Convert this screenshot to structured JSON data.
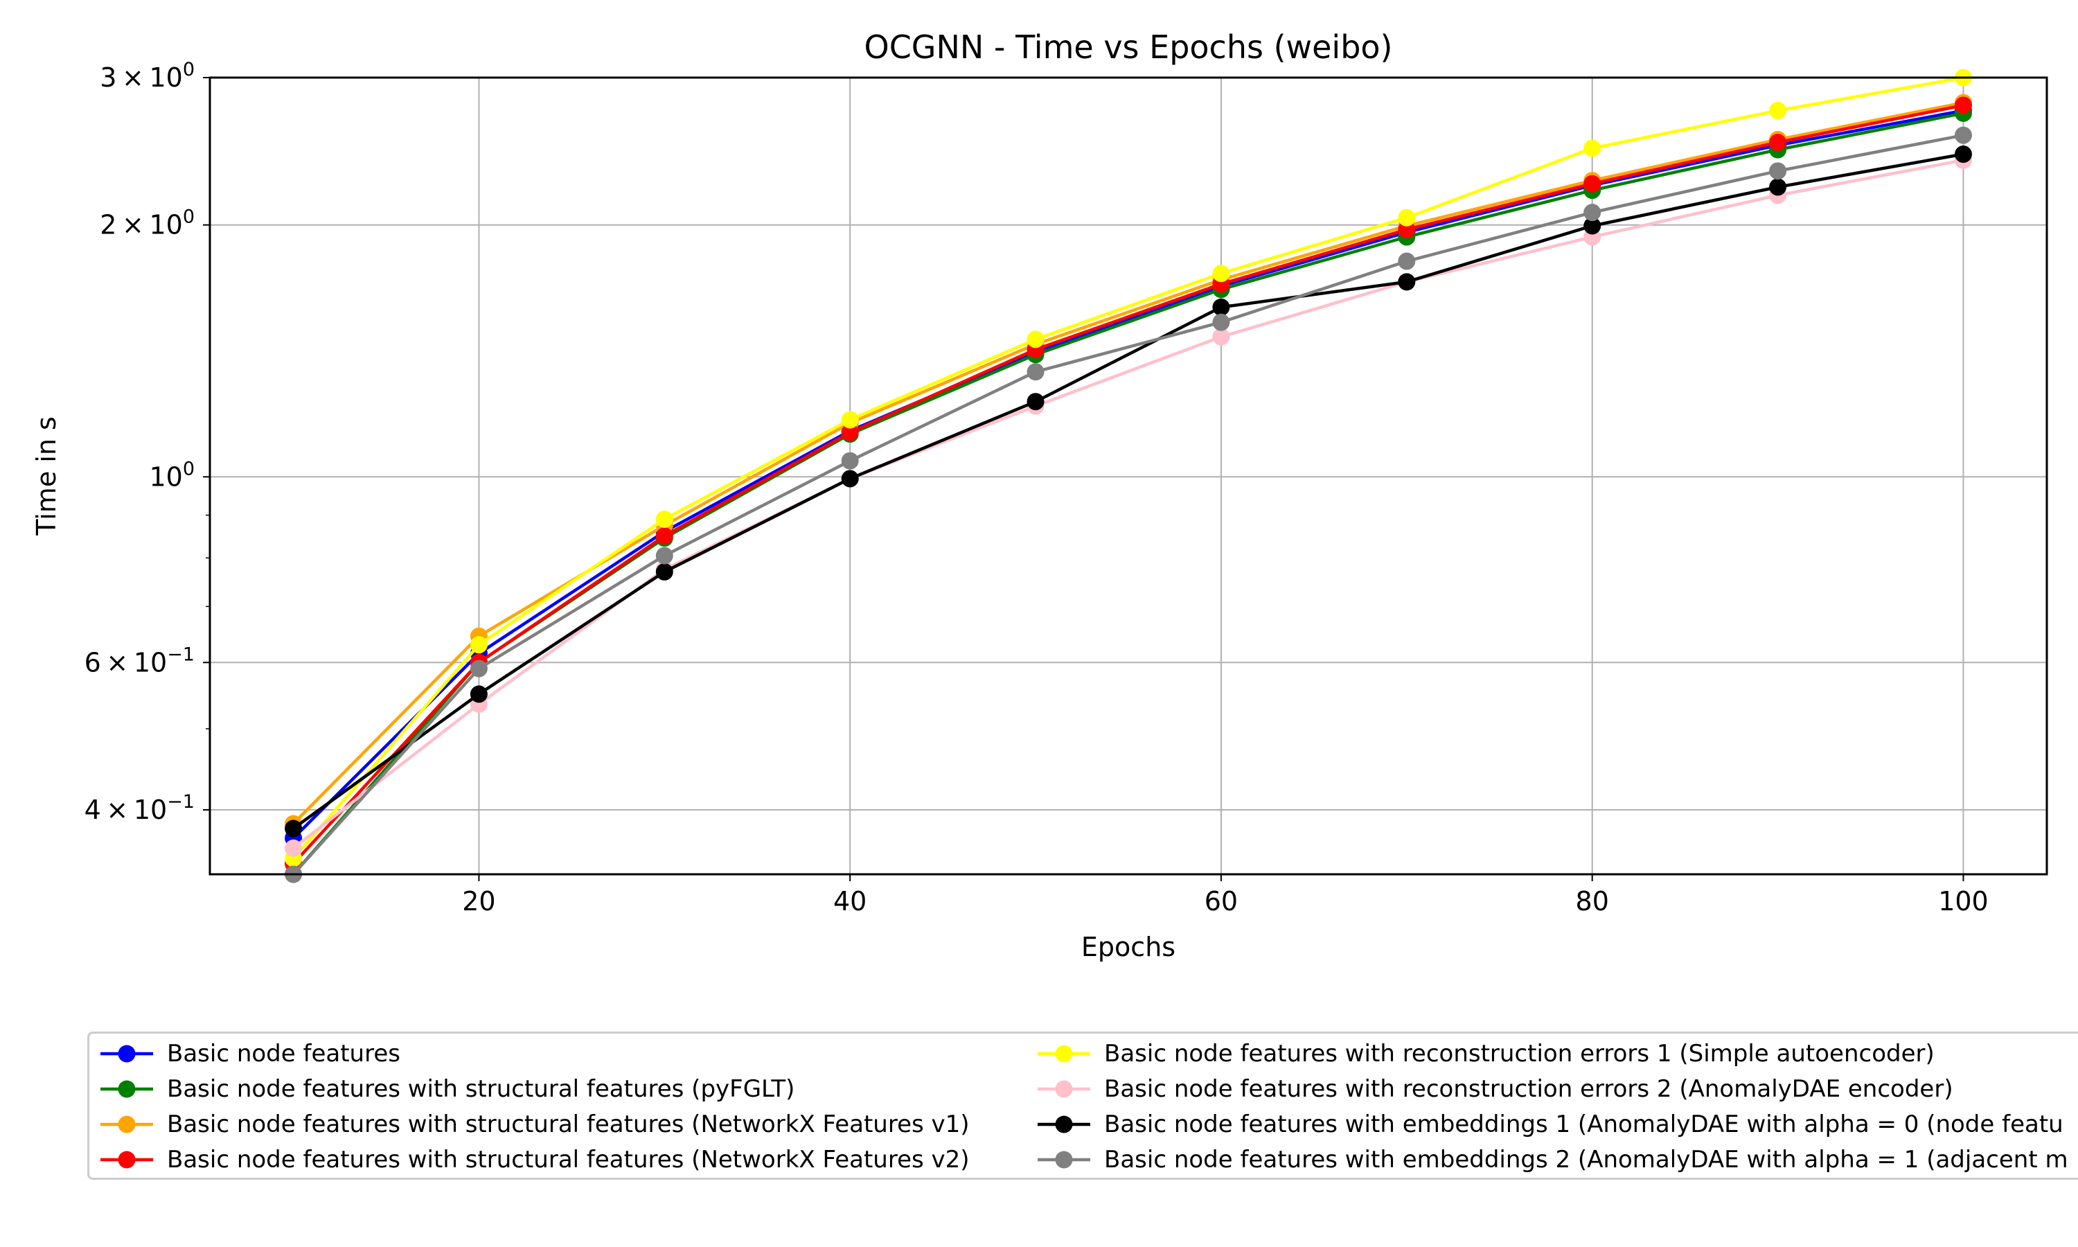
{
  "chart_data": {
    "type": "line",
    "title": "OCGNN - Time vs Epochs (weibo)",
    "xlabel": "Epochs",
    "ylabel": "Time in s",
    "yscale": "log",
    "xlim": [
      5.5,
      104.5
    ],
    "ylim": [
      0.335,
      3.0
    ],
    "xticks": [
      {
        "value": 20,
        "label": "20"
      },
      {
        "value": 40,
        "label": "40"
      },
      {
        "value": 60,
        "label": "60"
      },
      {
        "value": 80,
        "label": "80"
      },
      {
        "value": 100,
        "label": "100"
      }
    ],
    "yticks_major": [
      {
        "value": 0.4,
        "mant": "4",
        "exp": "−1"
      },
      {
        "value": 0.6,
        "mant": "6",
        "exp": "−1"
      },
      {
        "value": 1.0,
        "mant": "10",
        "exp": "0",
        "plain": true
      },
      {
        "value": 2.0,
        "mant": "2",
        "exp": "0"
      },
      {
        "value": 3.0,
        "mant": "3",
        "exp": "0"
      }
    ],
    "yticks_minor": [
      0.5,
      0.7,
      0.8,
      0.9
    ],
    "grid": true,
    "legend_position": "bottom",
    "x": [
      10,
      20,
      30,
      40,
      50,
      60,
      70,
      80,
      90,
      100
    ],
    "series": [
      {
        "name": "Basic node features",
        "color": "#0000ff",
        "values": [
          0.37,
          0.615,
          0.86,
          1.135,
          1.41,
          1.69,
          1.96,
          2.23,
          2.49,
          2.74
        ]
      },
      {
        "name": "Basic node features with structural features (pyFGLT)",
        "color": "#008000",
        "values": [
          0.335,
          0.6,
          0.845,
          1.125,
          1.4,
          1.675,
          1.935,
          2.2,
          2.46,
          2.72
        ]
      },
      {
        "name": "Basic node features with structural features (NetworkX Features v1)",
        "color": "#ffa500",
        "values": [
          0.385,
          0.645,
          0.875,
          1.16,
          1.44,
          1.72,
          1.995,
          2.26,
          2.53,
          2.8
        ]
      },
      {
        "name": "Basic node features with structural features (NetworkX Features v2)",
        "color": "#ff0000",
        "values": [
          0.345,
          0.6,
          0.85,
          1.13,
          1.42,
          1.7,
          1.975,
          2.24,
          2.51,
          2.78
        ]
      },
      {
        "name": "Basic node features with reconstruction errors 1 (Simple autoencoder)",
        "color": "#ffff00",
        "values": [
          0.35,
          0.63,
          0.89,
          1.17,
          1.46,
          1.75,
          2.04,
          2.47,
          2.74,
          3.0
        ]
      },
      {
        "name": "Basic node features with reconstruction errors 2 (AnomalyDAE encoder)",
        "color": "#ffc0cb",
        "values": [
          0.36,
          0.535,
          0.775,
          0.995,
          1.215,
          1.47,
          1.71,
          1.935,
          2.17,
          2.39
        ]
      },
      {
        "name": "Basic node features with embeddings 1 (AnomalyDAE with alpha = 0 (node featu",
        "color": "#000000",
        "values": [
          0.38,
          0.55,
          0.77,
          0.995,
          1.23,
          1.595,
          1.71,
          1.995,
          2.22,
          2.43
        ]
      },
      {
        "name": "Basic node features with embeddings 2 (AnomalyDAE with alpha = 1 (adjacent m",
        "color": "#808080",
        "values": [
          0.335,
          0.59,
          0.805,
          1.045,
          1.335,
          1.53,
          1.81,
          2.07,
          2.32,
          2.56
        ]
      }
    ]
  }
}
